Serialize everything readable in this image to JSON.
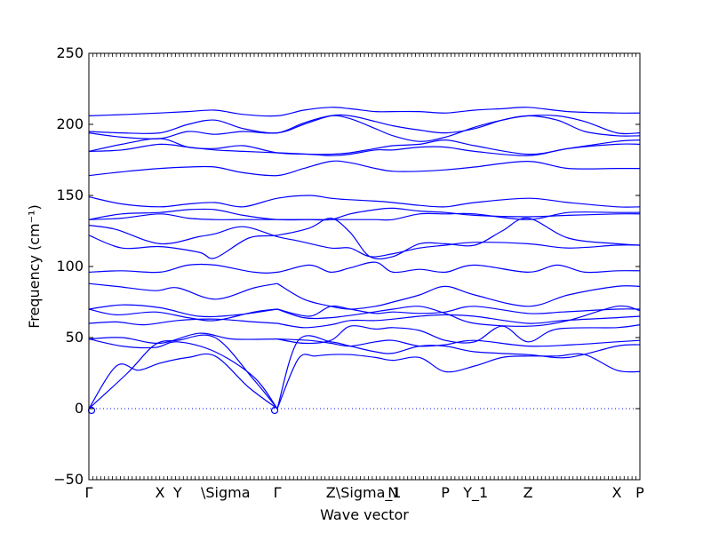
{
  "colors": {
    "band": "#0000ff",
    "zero_line": "#0000ff",
    "axis": "#000000",
    "background": "#ffffff"
  },
  "chart_data": {
    "type": "line",
    "title": "",
    "xlabel": "Wave vector",
    "ylabel": "Frequency (cm⁻¹)",
    "ylim": [
      -50,
      250
    ],
    "yticks": [
      -50,
      0,
      50,
      100,
      150,
      200,
      250
    ],
    "xlim": [
      0,
      1
    ],
    "grid": false,
    "legend": "none",
    "zero_line": {
      "y": 0,
      "style": "dotted"
    },
    "high_symmetry_points": [
      {
        "label": "Γ",
        "x": 0.0
      },
      {
        "label": "X",
        "x": 0.129
      },
      {
        "label": "Y",
        "x": 0.161
      },
      {
        "label": "\\Sigma",
        "x": 0.229
      },
      {
        "label": "Γ",
        "x": 0.342
      },
      {
        "label": "Z",
        "x": 0.439
      },
      {
        "label": "\\Sigma_1",
        "x": 0.474
      },
      {
        "label": "N",
        "x": 0.552
      },
      {
        "label": "P",
        "x": 0.647
      },
      {
        "label": "Y_1",
        "x": 0.702
      },
      {
        "label": "Z",
        "x": 0.797
      },
      {
        "label": "X",
        "x": 0.958
      },
      {
        "label": "P",
        "x": 1.0
      }
    ],
    "series": [
      {
        "x": [
          0.0,
          0.07,
          0.12,
          0.161,
          0.229,
          0.3,
          0.342
        ],
        "y": [
          0,
          25,
          45,
          48,
          50,
          20,
          0
        ]
      },
      {
        "x": [
          0.0,
          0.05,
          0.09,
          0.129,
          0.18,
          0.229,
          0.29,
          0.342
        ],
        "y": [
          0,
          30,
          27,
          32,
          36,
          37,
          15,
          0
        ]
      },
      {
        "x": [
          0.0,
          0.06,
          0.129,
          0.2,
          0.26,
          0.342
        ],
        "y": [
          49,
          50,
          46,
          53,
          49,
          49
        ]
      },
      {
        "x": [
          0.0,
          0.06,
          0.12,
          0.161,
          0.229,
          0.3,
          0.342
        ],
        "y": [
          49,
          44,
          43,
          47,
          40,
          22,
          0
        ]
      },
      {
        "x": [
          0.342,
          0.38,
          0.41,
          0.439,
          0.474,
          0.52,
          0.552,
          0.6,
          0.647,
          0.7,
          0.75,
          0.797,
          0.85,
          0.9,
          0.958,
          1.0
        ],
        "y": [
          0,
          35,
          37,
          38,
          38,
          36,
          34,
          36,
          26,
          30,
          36,
          37,
          37,
          38,
          27,
          26
        ]
      },
      {
        "x": [
          0.342,
          0.38,
          0.439,
          0.474,
          0.52,
          0.552,
          0.6,
          0.647,
          0.7,
          0.797,
          0.87,
          0.958,
          1.0
        ],
        "y": [
          0,
          48,
          47,
          44,
          40,
          39,
          44,
          44,
          40,
          38,
          36,
          44,
          45
        ]
      },
      {
        "x": [
          0.342,
          0.4,
          0.439,
          0.474,
          0.52,
          0.552,
          0.6,
          0.647,
          0.7,
          0.797,
          0.88,
          0.958,
          1.0
        ],
        "y": [
          49,
          48,
          46,
          44,
          47,
          48,
          44,
          45,
          48,
          44,
          45,
          47,
          48
        ]
      },
      {
        "x": [
          0.342,
          0.39,
          0.439,
          0.474,
          0.52,
          0.552,
          0.6,
          0.647,
          0.7,
          0.75,
          0.797,
          0.85,
          0.958,
          1.0
        ],
        "y": [
          49,
          46,
          48,
          58,
          56,
          57,
          55,
          48,
          47,
          58,
          47,
          56,
          57,
          59
        ]
      },
      {
        "x": [
          0.0,
          0.05,
          0.1,
          0.161,
          0.229,
          0.3,
          0.342
        ],
        "y": [
          60,
          61,
          59,
          62,
          63,
          61,
          60
        ]
      },
      {
        "x": [
          0.0,
          0.06,
          0.129,
          0.2,
          0.27,
          0.342
        ],
        "y": [
          70,
          73,
          71,
          65,
          66,
          70
        ]
      },
      {
        "x": [
          0.0,
          0.05,
          0.12,
          0.18,
          0.229,
          0.3,
          0.342
        ],
        "y": [
          70,
          66,
          68,
          64,
          62,
          68,
          70
        ]
      },
      {
        "x": [
          0.342,
          0.39,
          0.439,
          0.474,
          0.52,
          0.552,
          0.6,
          0.647,
          0.7,
          0.797,
          0.86,
          0.958,
          1.0
        ],
        "y": [
          60,
          57,
          59,
          62,
          62,
          63,
          65,
          66,
          65,
          60,
          62,
          64,
          65
        ]
      },
      {
        "x": [
          0.342,
          0.4,
          0.439,
          0.474,
          0.52,
          0.552,
          0.6,
          0.647,
          0.7,
          0.797,
          0.86,
          0.958,
          1.0
        ],
        "y": [
          70,
          65,
          72,
          70,
          67,
          68,
          67,
          68,
          72,
          67,
          68,
          70,
          70
        ]
      },
      {
        "x": [
          0.342,
          0.39,
          0.439,
          0.5,
          0.552,
          0.6,
          0.647,
          0.7,
          0.797,
          0.87,
          0.958,
          1.0
        ],
        "y": [
          70,
          64,
          64,
          67,
          70,
          72,
          67,
          60,
          58,
          62,
          72,
          69
        ]
      },
      {
        "x": [
          0.0,
          0.05,
          0.12,
          0.161,
          0.229,
          0.3,
          0.342
        ],
        "y": [
          88,
          86,
          83,
          85,
          77,
          85,
          88
        ]
      },
      {
        "x": [
          0.342,
          0.39,
          0.439,
          0.474,
          0.52,
          0.552,
          0.6,
          0.647,
          0.7,
          0.797,
          0.87,
          0.958,
          1.0
        ],
        "y": [
          88,
          77,
          72,
          70,
          72,
          75,
          80,
          86,
          80,
          72,
          80,
          86,
          86
        ]
      },
      {
        "x": [
          0.0,
          0.06,
          0.129,
          0.18,
          0.229,
          0.3,
          0.342,
          0.4,
          0.439,
          0.474,
          0.52,
          0.552,
          0.6,
          0.647,
          0.7,
          0.797,
          0.85,
          0.9,
          0.958,
          1.0
        ],
        "y": [
          96,
          97,
          96,
          101,
          101,
          96,
          96,
          101,
          96,
          99,
          103,
          96,
          98,
          96,
          101,
          96,
          101,
          96,
          97,
          97
        ]
      },
      {
        "x": [
          0.0,
          0.05,
          0.129,
          0.2,
          0.229,
          0.28,
          0.342,
          0.38,
          0.439,
          0.474,
          0.51,
          0.552,
          0.6,
          0.647,
          0.7,
          0.797,
          0.87,
          0.958,
          1.0
        ],
        "y": [
          129,
          126,
          116,
          121,
          123,
          128,
          121,
          118,
          113,
          113,
          107,
          109,
          113,
          115,
          117,
          116,
          113,
          115,
          115
        ]
      },
      {
        "x": [
          0.0,
          0.06,
          0.129,
          0.2,
          0.229,
          0.29,
          0.342,
          0.4,
          0.439,
          0.474,
          0.51,
          0.552,
          0.6,
          0.647,
          0.7,
          0.75,
          0.797,
          0.87,
          0.958,
          1.0
        ],
        "y": [
          122,
          113,
          114,
          110,
          106,
          120,
          122,
          127,
          134,
          124,
          107,
          107,
          116,
          116,
          115,
          125,
          134,
          120,
          116,
          115
        ]
      },
      {
        "x": [
          0.0,
          0.06,
          0.129,
          0.18,
          0.229,
          0.28,
          0.342,
          0.4,
          0.439,
          0.474,
          0.52,
          0.552,
          0.6,
          0.647,
          0.7,
          0.797,
          0.87,
          0.958,
          1.0
        ],
        "y": [
          133,
          137,
          138,
          140,
          140,
          136,
          133,
          133,
          133,
          133,
          133,
          133,
          137,
          137,
          137,
          133,
          138,
          138,
          138
        ]
      },
      {
        "x": [
          0.0,
          0.06,
          0.129,
          0.18,
          0.229,
          0.28,
          0.342,
          0.4,
          0.439,
          0.474,
          0.52,
          0.552,
          0.6,
          0.647,
          0.7,
          0.797,
          0.87,
          0.958,
          1.0
        ],
        "y": [
          133,
          134,
          137,
          134,
          133,
          133,
          133,
          133,
          133,
          137,
          140,
          141,
          139,
          138,
          136,
          135,
          136,
          137,
          137
        ]
      },
      {
        "x": [
          0.0,
          0.06,
          0.129,
          0.18,
          0.229,
          0.28,
          0.342,
          0.4,
          0.439,
          0.474,
          0.52,
          0.552,
          0.6,
          0.647,
          0.7,
          0.797,
          0.87,
          0.958,
          1.0
        ],
        "y": [
          149,
          144,
          142,
          144,
          145,
          142,
          148,
          150,
          148,
          147,
          146,
          145,
          143,
          142,
          145,
          148,
          145,
          142,
          142
        ]
      },
      {
        "x": [
          0.0,
          0.07,
          0.129,
          0.18,
          0.229,
          0.28,
          0.342,
          0.39,
          0.439,
          0.474,
          0.52,
          0.552,
          0.6,
          0.647,
          0.7,
          0.797,
          0.87,
          0.958,
          1.0
        ],
        "y": [
          164,
          167,
          169,
          170,
          170,
          166,
          164,
          169,
          174,
          173,
          169,
          167,
          167,
          168,
          170,
          174,
          169,
          169,
          169
        ]
      },
      {
        "x": [
          0.0,
          0.06,
          0.129,
          0.18,
          0.229,
          0.28,
          0.342,
          0.4,
          0.439,
          0.474,
          0.52,
          0.552,
          0.6,
          0.647,
          0.7,
          0.797,
          0.87,
          0.958,
          1.0
        ],
        "y": [
          181,
          182,
          186,
          184,
          182,
          181,
          180,
          179,
          178,
          179,
          182,
          182,
          184,
          184,
          181,
          178,
          183,
          186,
          186
        ]
      },
      {
        "x": [
          0.0,
          0.06,
          0.129,
          0.18,
          0.229,
          0.28,
          0.342,
          0.4,
          0.439,
          0.474,
          0.52,
          0.552,
          0.6,
          0.647,
          0.7,
          0.797,
          0.87,
          0.958,
          1.0
        ],
        "y": [
          181,
          186,
          190,
          184,
          183,
          185,
          180,
          179,
          179,
          180,
          183,
          185,
          186,
          189,
          185,
          179,
          183,
          188,
          189
        ]
      },
      {
        "x": [
          0.0,
          0.06,
          0.129,
          0.18,
          0.229,
          0.28,
          0.342,
          0.39,
          0.439,
          0.474,
          0.52,
          0.552,
          0.6,
          0.647,
          0.7,
          0.75,
          0.797,
          0.85,
          0.9,
          0.958,
          1.0
        ],
        "y": [
          194,
          191,
          190,
          195,
          193,
          195,
          194,
          201,
          206,
          204,
          197,
          192,
          188,
          191,
          198,
          203,
          206,
          203,
          195,
          192,
          192
        ]
      },
      {
        "x": [
          0.0,
          0.06,
          0.129,
          0.18,
          0.229,
          0.28,
          0.342,
          0.39,
          0.439,
          0.474,
          0.52,
          0.552,
          0.6,
          0.647,
          0.7,
          0.75,
          0.797,
          0.85,
          0.9,
          0.958,
          1.0
        ],
        "y": [
          195,
          194,
          194,
          200,
          203,
          197,
          194,
          200,
          206,
          206,
          202,
          199,
          196,
          194,
          197,
          203,
          206,
          206,
          202,
          194,
          194
        ]
      },
      {
        "x": [
          0.0,
          0.07,
          0.129,
          0.18,
          0.229,
          0.28,
          0.342,
          0.39,
          0.439,
          0.474,
          0.52,
          0.552,
          0.6,
          0.647,
          0.7,
          0.75,
          0.797,
          0.87,
          0.958,
          1.0
        ],
        "y": [
          206,
          207,
          208,
          209,
          210,
          207,
          206,
          210,
          212,
          211,
          209,
          209,
          209,
          208,
          210,
          211,
          212,
          209,
          208,
          208
        ]
      }
    ]
  }
}
